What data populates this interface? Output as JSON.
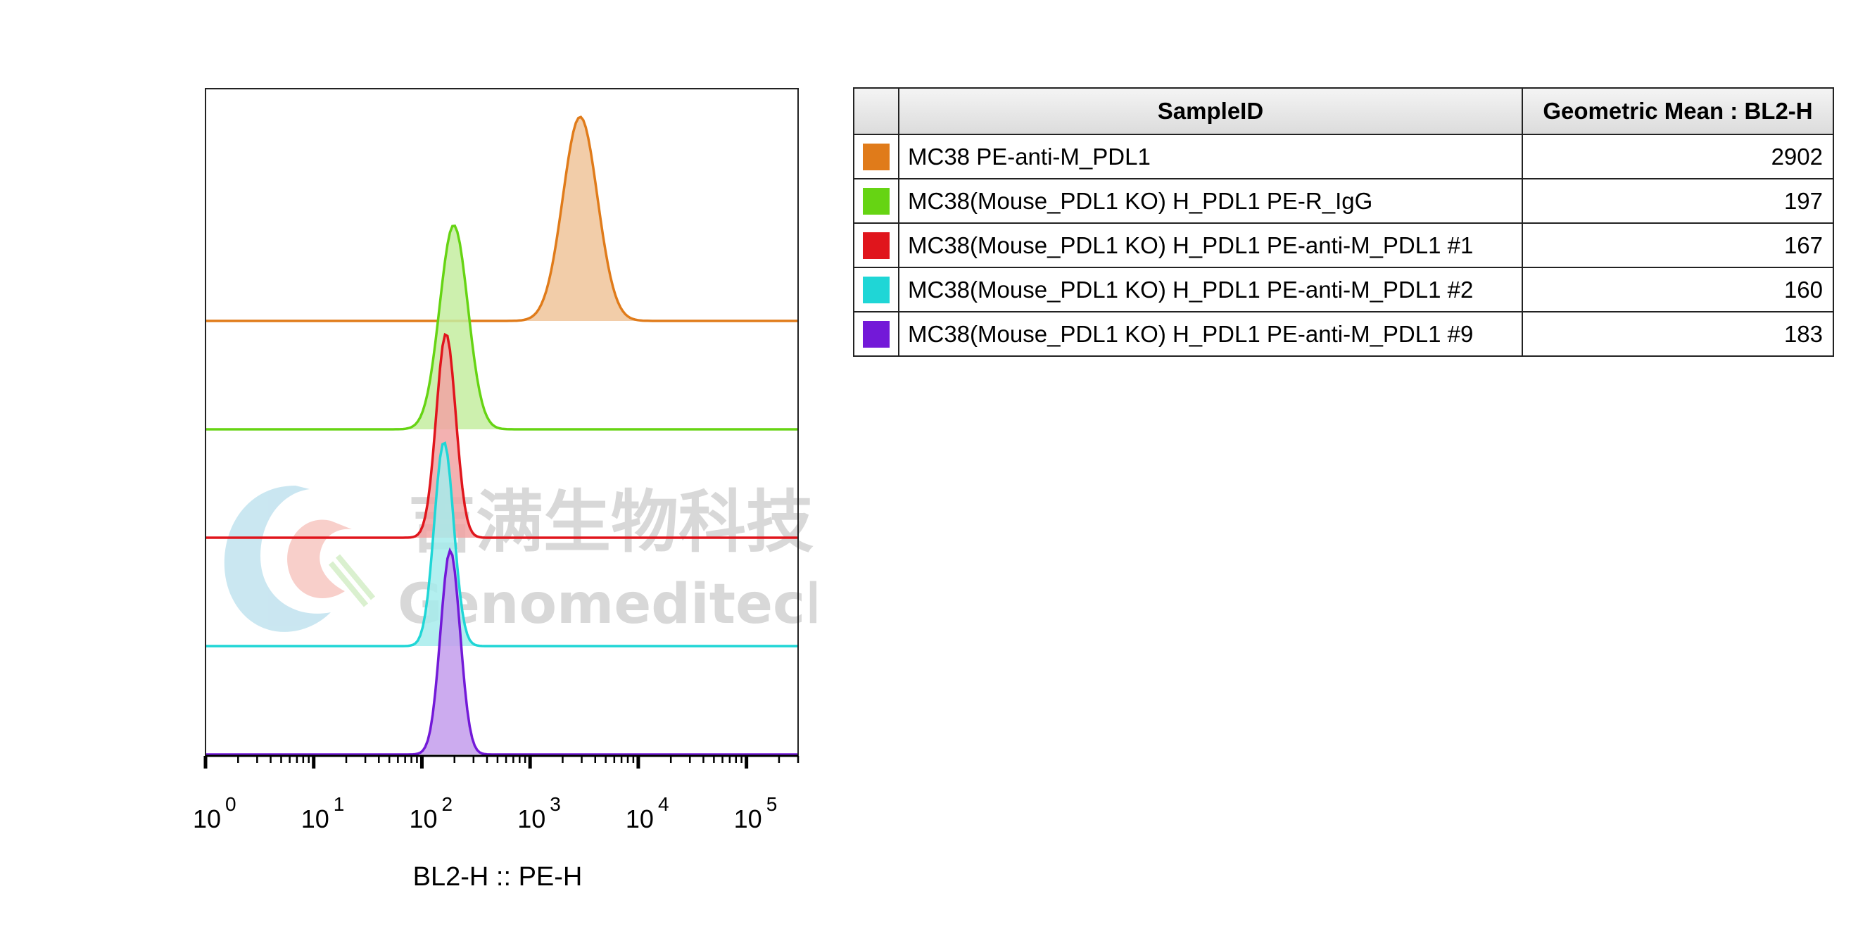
{
  "chart_data": {
    "type": "histogram",
    "xlabel": "BL2-H :: PE-H",
    "x_scale": "log",
    "x_range": [
      1,
      300000
    ],
    "x_ticks": [
      {
        "base": "10",
        "exp": "0",
        "value": 1
      },
      {
        "base": "10",
        "exp": "1",
        "value": 10
      },
      {
        "base": "10",
        "exp": "2",
        "value": 100
      },
      {
        "base": "10",
        "exp": "3",
        "value": 1000
      },
      {
        "base": "10",
        "exp": "4",
        "value": 10000
      },
      {
        "base": "10",
        "exp": "5",
        "value": 100000
      }
    ],
    "layout": "offset overlay",
    "series": [
      {
        "name": "MC38 PE-anti-M_PDL1",
        "color": "#e07b1a",
        "fill": "#f0c49a",
        "peak": 2902,
        "width": 0.16
      },
      {
        "name": "MC38(Mouse_PDL1 KO) H_PDL1 PE-R_IgG",
        "color": "#66d413",
        "fill": "#c4eda0",
        "peak": 197,
        "width": 0.13
      },
      {
        "name": "MC38(Mouse_PDL1 KO) H_PDL1 PE-anti-M_PDL1 #1",
        "color": "#e0151c",
        "fill": "#f1a3a3",
        "peak": 167,
        "width": 0.09
      },
      {
        "name": "MC38(Mouse_PDL1 KO) H_PDL1 PE-anti-M_PDL1 #2",
        "color": "#1fd6d6",
        "fill": "#a6ecec",
        "peak": 160,
        "width": 0.09
      },
      {
        "name": "MC38(Mouse_PDL1 KO) H_PDL1 PE-anti-M_PDL1 #9",
        "color": "#7319d8",
        "fill": "#c39cec",
        "peak": 183,
        "width": 0.09
      }
    ]
  },
  "legend_table": {
    "headers": {
      "sample_id": "SampleID",
      "geometric_mean": "Geometric Mean : BL2-H"
    },
    "rows": [
      {
        "sample_id": "MC38 PE-anti-M_PDL1",
        "geometric_mean": "2902",
        "color": "#e07b1a"
      },
      {
        "sample_id": "MC38(Mouse_PDL1 KO) H_PDL1 PE-R_IgG",
        "geometric_mean": "197",
        "color": "#66d413"
      },
      {
        "sample_id": "MC38(Mouse_PDL1 KO) H_PDL1 PE-anti-M_PDL1 #1",
        "geometric_mean": "167",
        "color": "#e0151c"
      },
      {
        "sample_id": "MC38(Mouse_PDL1 KO) H_PDL1 PE-anti-M_PDL1 #2",
        "geometric_mean": "160",
        "color": "#1fd6d6"
      },
      {
        "sample_id": "MC38(Mouse_PDL1 KO) H_PDL1 PE-anti-M_PDL1 #9",
        "geometric_mean": "183",
        "color": "#7319d8"
      }
    ]
  },
  "watermark": {
    "cn": "吉满生物科技",
    "en": "Genomeditech"
  }
}
